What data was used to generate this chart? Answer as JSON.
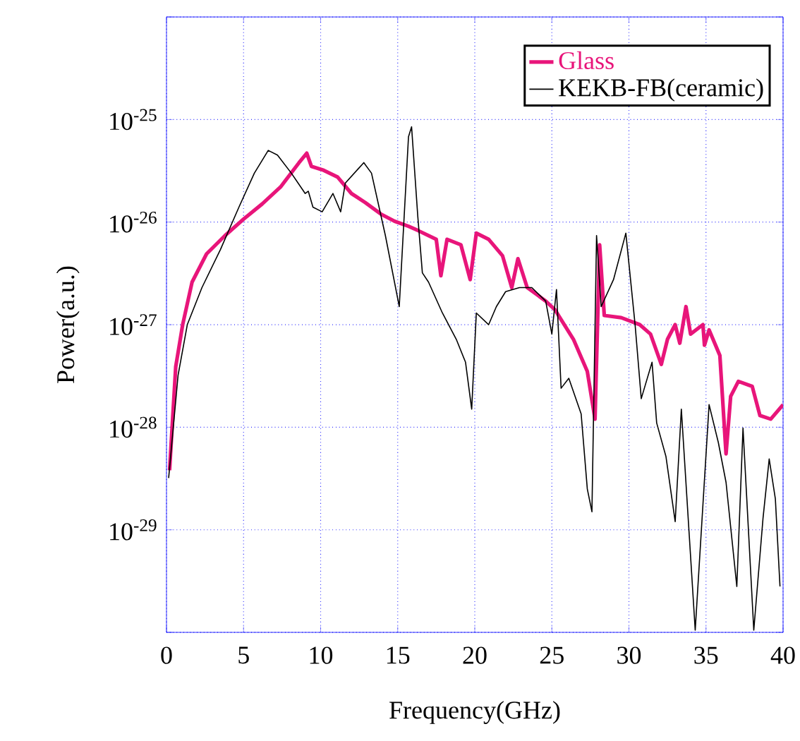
{
  "chart_data": {
    "type": "line",
    "xlabel": "Frequency(GHz)",
    "ylabel": "Power(a.u.)",
    "log": "y",
    "grid": true,
    "legend": "top right",
    "xlim": [
      0,
      40
    ],
    "xticks": [
      0,
      5,
      10,
      15,
      20,
      25,
      30,
      35,
      40
    ],
    "ylim": [
      1e-30,
      1e-24
    ],
    "yticks": [
      {
        "value": 1e-30,
        "label": null
      },
      {
        "value": 1e-29,
        "label": "10$^{-29}$"
      },
      {
        "value": 1e-28,
        "label": "10$^{-28}$"
      },
      {
        "value": 1e-27,
        "label": "10$^{-27}$"
      },
      {
        "value": 1e-26,
        "label": "10$^{-26}$"
      },
      {
        "value": 1e-25,
        "label": "10$^{-25}$"
      },
      {
        "value": 1e-24,
        "label": null
      }
    ],
    "series": [
      {
        "name": "Glass",
        "color": "#e8157a",
        "x": [
          0.2,
          0.6,
          1.05,
          1.66,
          2.6,
          3.8,
          5.0,
          6.2,
          7.4,
          8.6,
          9.1,
          9.4,
          10.2,
          11.1,
          12.0,
          12.9,
          13.9,
          14.8,
          15.7,
          16.3,
          17.5,
          17.8,
          18.2,
          19.1,
          19.7,
          20.1,
          20.9,
          21.8,
          22.4,
          22.8,
          23.4,
          24.6,
          25.2,
          26.4,
          27.3,
          27.8,
          28.1,
          28.4,
          29.5,
          30.7,
          31.4,
          32.1,
          32.5,
          33.0,
          33.3,
          33.7,
          34.0,
          34.8,
          34.9,
          35.2,
          35.9,
          36.3,
          36.6,
          37.1,
          38.0,
          38.5,
          39.2,
          40.0
        ],
        "values": [
          3.8e-29,
          3.9e-28,
          1e-27,
          2.6e-27,
          4.9e-27,
          7.4e-27,
          1.07e-26,
          1.5e-26,
          2.2e-26,
          3.8e-26,
          4.7e-26,
          3.5e-26,
          3.2e-26,
          2.75e-26,
          1.9e-26,
          1.55e-26,
          1.2e-26,
          1.02e-26,
          9.1e-27,
          8.3e-27,
          6.8e-27,
          3e-27,
          6.8e-27,
          6e-27,
          2.75e-27,
          7.8e-27,
          6.8e-27,
          4.7e-27,
          2.3e-27,
          4.4e-27,
          2.3e-27,
          1.7e-27,
          1.4e-27,
          7.2e-28,
          3.5e-28,
          1.2e-28,
          6e-27,
          1.23e-27,
          1.17e-27,
          1e-27,
          8.1e-28,
          4.1e-28,
          7.2e-28,
          1e-27,
          6.6e-28,
          1.5e-27,
          8.1e-28,
          1e-27,
          6.3e-28,
          8.9e-28,
          5e-28,
          5.5e-29,
          2e-28,
          2.8e-28,
          2.5e-28,
          1.3e-28,
          1.2e-28,
          1.66e-28
        ]
      },
      {
        "name": "KEKB-FB(ceramic)",
        "color": "#000000",
        "x": [
          0.14,
          0.75,
          1.35,
          2.3,
          3.5,
          4.7,
          5.7,
          6.6,
          7.2,
          8.1,
          9.0,
          9.2,
          9.5,
          10.1,
          10.8,
          11.3,
          11.6,
          12.8,
          13.3,
          14.2,
          15.1,
          15.7,
          15.9,
          16.3,
          16.6,
          17.0,
          17.9,
          18.8,
          19.4,
          19.8,
          20.1,
          20.9,
          21.4,
          22.0,
          22.9,
          23.7,
          24.6,
          25.0,
          25.3,
          25.6,
          26.1,
          26.9,
          27.3,
          27.6,
          27.9,
          28.2,
          29.0,
          29.8,
          30.4,
          30.8,
          31.5,
          31.8,
          32.4,
          33.0,
          33.4,
          34.3,
          35.2,
          35.8,
          36.3,
          37.0,
          37.4,
          38.1,
          38.7,
          39.1,
          39.5,
          39.8
        ],
        "values": [
          3.2e-29,
          3.2e-28,
          1e-27,
          2.3e-27,
          5.4e-27,
          1.4e-26,
          3e-26,
          5e-26,
          4.5e-26,
          3e-26,
          1.9e-26,
          2e-26,
          1.4e-26,
          1.26e-26,
          1.9e-26,
          1.26e-26,
          2.4e-26,
          3.8e-26,
          3e-26,
          7.4e-27,
          1.5e-27,
          6.8e-26,
          8.5e-26,
          1.15e-26,
          3.2e-27,
          2.6e-27,
          1.3e-27,
          7.2e-28,
          4.3e-28,
          1.5e-28,
          1.3e-27,
          1e-27,
          1.5e-27,
          2.1e-27,
          2.3e-27,
          2.3e-27,
          1.7e-27,
          8.1e-28,
          2.2e-27,
          2.4e-28,
          3e-28,
          1.35e-28,
          2.5e-29,
          1.5e-29,
          7.4e-27,
          1.5e-27,
          2.75e-27,
          7.8e-27,
          1e-27,
          1.9e-28,
          4.3e-28,
          1.1e-28,
          5.2e-29,
          1.2e-29,
          1.5e-28,
          1.05e-30,
          1.66e-28,
          7.1e-29,
          2.9e-29,
          2.8e-30,
          9.8e-29,
          1.05e-30,
          1.3e-29,
          4.9e-29,
          2e-29,
          2.8e-30
        ]
      }
    ]
  }
}
